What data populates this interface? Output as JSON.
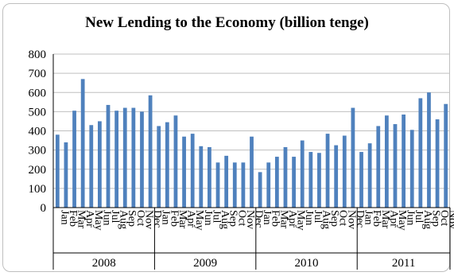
{
  "chart_data": {
    "type": "bar",
    "title": "New Lending to the Economy (billion tenge)",
    "xlabel": "",
    "ylabel": "",
    "ylim": [
      0,
      800
    ],
    "yticks": [
      0,
      100,
      200,
      300,
      400,
      500,
      600,
      700,
      800
    ],
    "grid": true,
    "legend": "none",
    "bar_color": "#4f81bd",
    "groups": [
      {
        "year": "2008",
        "months": [
          "Jan",
          "Feb",
          "Mar",
          "Apr",
          "May",
          "Jun",
          "Jul",
          "Aug",
          "Sep",
          "Oct",
          "Nov",
          "Dec"
        ],
        "values": [
          380,
          340,
          505,
          670,
          430,
          450,
          535,
          505,
          520,
          520,
          500,
          585
        ]
      },
      {
        "year": "2009",
        "months": [
          "Jan",
          "Feb",
          "Mar",
          "Apr",
          "May",
          "Jun",
          "Jul",
          "Aug",
          "Sep",
          "Oct",
          "Nov",
          "Dec"
        ],
        "values": [
          425,
          445,
          480,
          370,
          385,
          320,
          315,
          235,
          270,
          235,
          235,
          370
        ]
      },
      {
        "year": "2010",
        "months": [
          "Jan",
          "Feb",
          "Mar",
          "Apr",
          "May",
          "Jun",
          "Jul",
          "Aug",
          "Sep",
          "Oct",
          "Nov",
          "Dec"
        ],
        "values": [
          185,
          235,
          265,
          315,
          265,
          350,
          290,
          285,
          385,
          325,
          375,
          520
        ]
      },
      {
        "year": "2011",
        "months": [
          "Jan",
          "Feb",
          "Mar",
          "Apr",
          "May",
          "Jun",
          "Jul",
          "Aug",
          "Sep",
          "Oct",
          "Nov"
        ],
        "values": [
          290,
          335,
          425,
          480,
          435,
          485,
          405,
          570,
          600,
          460,
          540
        ]
      }
    ]
  }
}
